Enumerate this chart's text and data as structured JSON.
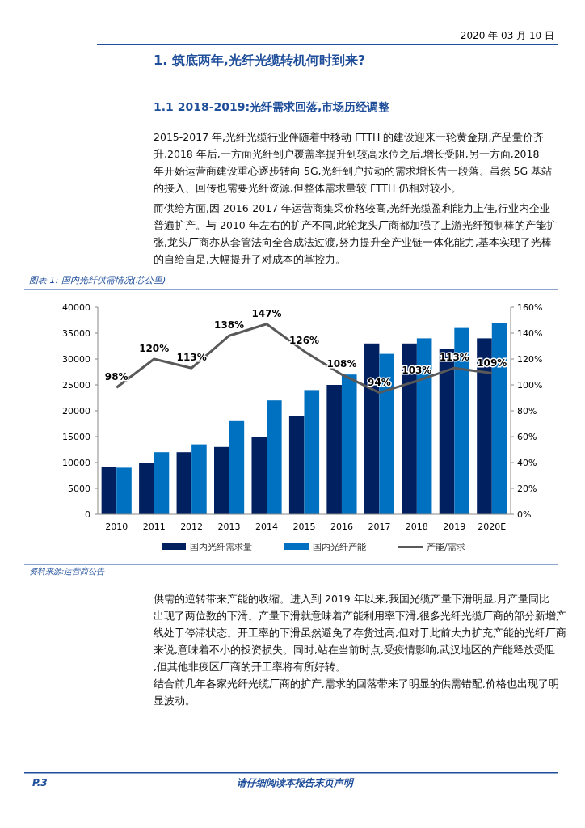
{
  "chart_data": {
    "type": "bar",
    "title": "图表 1: 国内光纤供需情况(芯公里)",
    "categories": [
      "2010",
      "2011",
      "2012",
      "2013",
      "2014",
      "2015",
      "2016",
      "2017",
      "2018",
      "2019",
      "2020E"
    ],
    "series": [
      {
        "name": "国内光纤需求量",
        "color": "#002060",
        "values": [
          9200,
          10000,
          12000,
          13000,
          15000,
          19000,
          25000,
          33000,
          33000,
          32000,
          34000
        ]
      },
      {
        "name": "国内光纤产能",
        "color": "#0070c0",
        "values": [
          9000,
          12000,
          13500,
          18000,
          22000,
          24000,
          27000,
          31000,
          34000,
          36000,
          37000
        ]
      },
      {
        "name": "产能/需求",
        "type": "line",
        "axis": "y2",
        "color": "#595959",
        "marker": "none",
        "data_labels": true,
        "value_labels": [
          "98%",
          "120%",
          "113%",
          "138%",
          "147%",
          "126%",
          "108%",
          "94%",
          "103%",
          "113%",
          "109%"
        ],
        "values": [
          98,
          120,
          113,
          138,
          147,
          126,
          108,
          94,
          103,
          113,
          109
        ]
      }
    ],
    "ylim": [
      0,
      40000
    ],
    "yticks": [
      0,
      5000,
      10000,
      15000,
      20000,
      25000,
      30000,
      35000,
      40000
    ],
    "y2lim": [
      0,
      160
    ],
    "y2ticks": [
      {
        "value": 0,
        "label": "0%"
      },
      {
        "value": 20,
        "label": "20%"
      },
      {
        "value": 40,
        "label": "40%"
      },
      {
        "value": 60,
        "label": "60%"
      },
      {
        "value": 80,
        "label": "80%"
      },
      {
        "value": 100,
        "label": "100%"
      },
      {
        "value": 120,
        "label": "120%"
      },
      {
        "value": 140,
        "label": "140%"
      },
      {
        "value": 160,
        "label": "160%"
      }
    ],
    "grid": false,
    "legend": "bottom",
    "annotations": [
      "2020 年 03 月 10 日",
      "1. 筑底两年,光纤光缆转机何时到来?",
      "1.1 2018-2019:光纤需求回落,市场历经调整",
      "2015-2017 年,光纤光缆行业伴随着中移动 FTTH 的建设迎来一轮黄金期,产品量价齐升,2018 年后,一方面光纤到户覆盖率提升到较高水位之后,增长受阻,另一方面,2018 年开始运营商建设重心逐步转向 5G,光纤到户拉动的需求增长告一段落。虽然 5G 基站的接入、回传也需要光纤资源,但整体需求量较 FTTH 仍相对较小。",
      "而供给方面,因 2016-2017 年运营商集采价格较高,光纤光缆盈利能力上佳,行业内企业普遍扩产。与 2010 年左右的扩产不同,此轮龙头厂商都加强了上游光纤预制棒的产能扩张,龙头厂商亦从套管法向全合成法过渡,努力提升全产业链一体化能力,基本实现了光棒的自给自足,大幅提升了对成本的掌控力。",
      "资料来源:运营商公告",
      "供需的逆转带来产能的收缩。进入到 2019 年以来,我国光缆产量下滑明显,月产量同比出现了两位数的下滑。产量下滑就意味着产能利用率下滑,很多光纤光缆厂商的部分新增产线处于停滞状态。开工率的下滑虽然避免了存货过高,但对于此前大力扩充产能的光纤厂商来说,意味着不小的投资损失。同时,站在当前时点,受疫情影响,武汉地区的产能释放受阻,但其他非疫区厂商的开工率将有所好转。",
      "结合前几年各家光纤光缆厂商的扩产,需求的回落带来了明显的供需错配,价格也出现了明显波动。",
      "P.3",
      "请仔细阅读本报告末页声明"
    ]
  }
}
